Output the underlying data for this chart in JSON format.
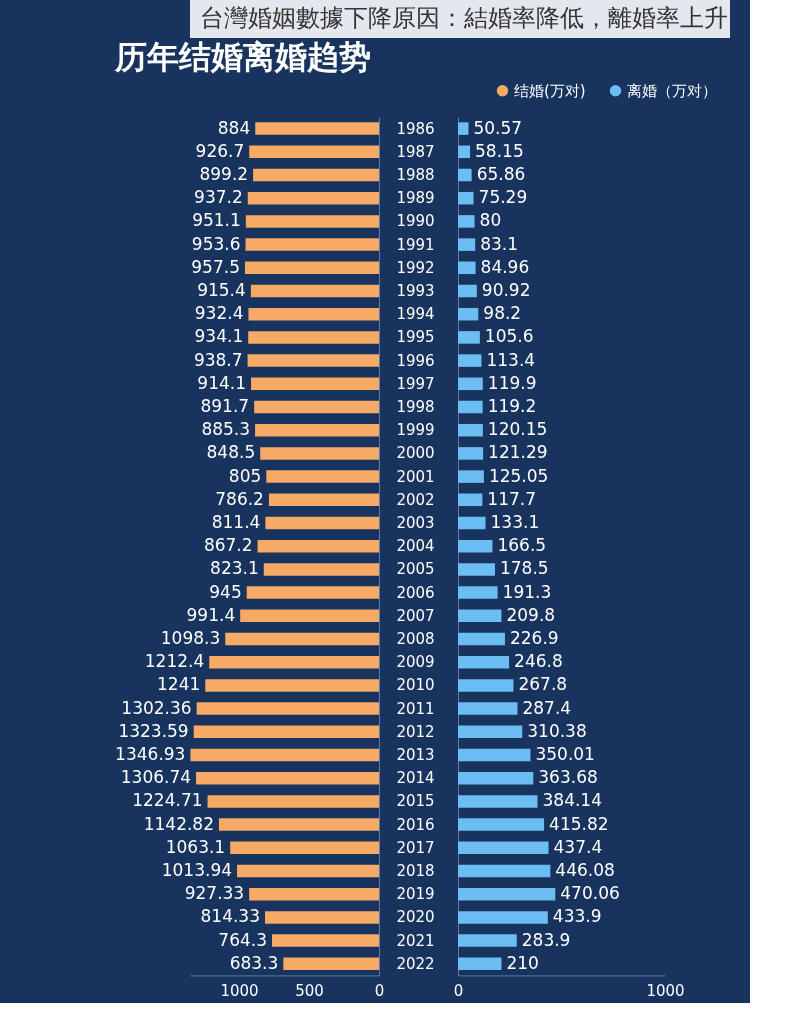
{
  "chart_data": [
    {
      "type": "bar",
      "orientation": "horizontal",
      "title": "台灣婚姻數據下降原因：結婚率降低，離婚率上升",
      "subtitle": "历年结婚离婚趋势",
      "categories": [
        "1986",
        "1987",
        "1988",
        "1989",
        "1990",
        "1991",
        "1992",
        "1993",
        "1994",
        "1995",
        "1996",
        "1997",
        "1998",
        "1999",
        "2000",
        "2001",
        "2002",
        "2003",
        "2004",
        "2005",
        "2006",
        "2007",
        "2008",
        "2009",
        "2010",
        "2011",
        "2012",
        "2013",
        "2014",
        "2015",
        "2016",
        "2017",
        "2018",
        "2019",
        "2020",
        "2021",
        "2022"
      ],
      "series": [
        {
          "name": "结婚(万对)",
          "color": "#f7a966",
          "values": [
            884,
            926.7,
            899.2,
            937.2,
            951.1,
            953.6,
            957.5,
            915.4,
            932.4,
            934.1,
            938.7,
            914.1,
            891.7,
            885.3,
            848.5,
            805,
            786.2,
            811.4,
            867.2,
            823.1,
            945,
            991.4,
            1098.3,
            1212.4,
            1241,
            1302.36,
            1323.59,
            1346.93,
            1306.74,
            1224.71,
            1142.82,
            1063.1,
            1013.94,
            927.33,
            814.33,
            764.3,
            683.3
          ]
        }
      ],
      "xlim": [
        1350,
        0
      ],
      "xticks": [
        1000,
        500,
        0
      ],
      "data_labels": true
    },
    {
      "type": "bar",
      "orientation": "horizontal",
      "categories": [
        "1986",
        "1987",
        "1988",
        "1989",
        "1990",
        "1991",
        "1992",
        "1993",
        "1994",
        "1995",
        "1996",
        "1997",
        "1998",
        "1999",
        "2000",
        "2001",
        "2002",
        "2003",
        "2004",
        "2005",
        "2006",
        "2007",
        "2008",
        "2009",
        "2010",
        "2011",
        "2012",
        "2013",
        "2014",
        "2015",
        "2016",
        "2017",
        "2018",
        "2019",
        "2020",
        "2021",
        "2022"
      ],
      "series": [
        {
          "name": "离婚（万对）",
          "color": "#6cbdf2",
          "values": [
            50.57,
            58.15,
            65.86,
            75.29,
            80,
            83.1,
            84.96,
            90.92,
            98.2,
            105.6,
            113.4,
            119.9,
            119.2,
            120.15,
            121.29,
            125.05,
            117.7,
            133.1,
            166.5,
            178.5,
            191.3,
            209.8,
            226.9,
            246.8,
            267.8,
            287.4,
            310.38,
            350.01,
            363.68,
            384.14,
            415.82,
            437.4,
            446.08,
            470.06,
            433.9,
            283.9,
            210
          ]
        }
      ],
      "xlim": [
        0,
        1000
      ],
      "xticks": [
        0,
        1000
      ],
      "data_labels": true,
      "legend": "top right",
      "tick_labels": "x"
    }
  ]
}
